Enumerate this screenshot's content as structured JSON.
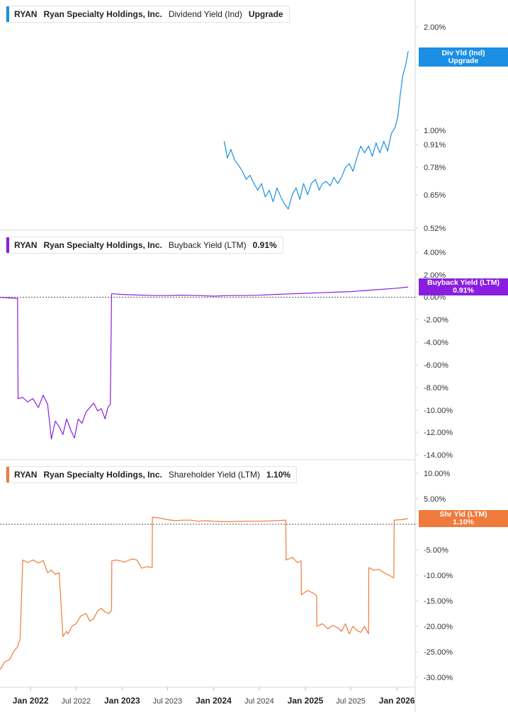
{
  "chart_data": [
    {
      "type": "line",
      "ticker": "RYAN",
      "company": "Ryan Specialty Holdings, Inc.",
      "metric": "Dividend Yield (Ind)",
      "current_value": "Upgrade",
      "flag_label": "Div Yld (Ind)",
      "flag_value": "Upgrade",
      "color": "#1a8fe3",
      "scale": "log",
      "y_ticks": [
        "2.00%",
        "1.00%",
        "0.91%",
        "0.78%",
        "0.65%",
        "0.52%"
      ],
      "y_tick_values": [
        2.0,
        1.0,
        0.91,
        0.78,
        0.65,
        0.52
      ],
      "ylim": [
        0.5,
        2.6
      ],
      "series": [
        {
          "x": [
            "2024-02-12",
            "2024-02-25",
            "2024-03-10",
            "2024-03-25",
            "2024-04-10",
            "2024-04-25",
            "2024-05-10",
            "2024-05-25",
            "2024-06-10",
            "2024-06-25",
            "2024-07-10",
            "2024-07-25",
            "2024-08-10",
            "2024-08-25",
            "2024-09-10",
            "2024-09-25",
            "2024-10-10",
            "2024-10-25",
            "2024-11-10",
            "2024-11-25",
            "2024-12-10",
            "2024-12-25",
            "2025-01-10",
            "2025-01-25",
            "2025-02-10",
            "2025-02-25",
            "2025-03-10",
            "2025-03-25",
            "2025-04-10",
            "2025-04-25",
            "2025-05-10",
            "2025-05-25",
            "2025-06-10",
            "2025-06-25",
            "2025-07-10",
            "2025-07-25",
            "2025-08-10",
            "2025-08-25",
            "2025-09-10",
            "2025-09-25",
            "2025-10-10",
            "2025-10-25",
            "2025-11-10",
            "2025-11-25",
            "2025-12-10",
            "2025-12-25",
            "2026-01-05",
            "2026-01-15",
            "2026-01-25",
            "2026-02-05",
            "2026-02-15"
          ],
          "values": [
            0.93,
            0.83,
            0.88,
            0.82,
            0.79,
            0.76,
            0.72,
            0.74,
            0.7,
            0.67,
            0.7,
            0.64,
            0.67,
            0.62,
            0.68,
            0.64,
            0.61,
            0.59,
            0.65,
            0.68,
            0.63,
            0.7,
            0.65,
            0.7,
            0.72,
            0.67,
            0.7,
            0.71,
            0.69,
            0.73,
            0.7,
            0.73,
            0.78,
            0.8,
            0.76,
            0.83,
            0.9,
            0.86,
            0.9,
            0.84,
            0.92,
            0.86,
            0.93,
            0.87,
            0.98,
            1.02,
            1.1,
            1.28,
            1.45,
            1.55,
            1.7
          ]
        }
      ]
    },
    {
      "type": "line",
      "ticker": "RYAN",
      "company": "Ryan Specialty Holdings, Inc.",
      "metric": "Buyback Yield (LTM)",
      "current_value": "0.91%",
      "flag_label": "Buyback Yield (LTM)",
      "flag_value": "0.91%",
      "color": "#8a1ee0",
      "scale": "linear",
      "zero_line": true,
      "y_ticks": [
        "4.00%",
        "2.00%",
        "0.00%",
        "-2.00%",
        "-4.00%",
        "-6.00%",
        "-8.00%",
        "-10.00%",
        "-12.00%",
        "-14.00%"
      ],
      "y_tick_values": [
        4,
        2,
        0,
        -2,
        -4,
        -6,
        -8,
        -10,
        -12,
        -14
      ],
      "ylim": [
        -14.5,
        5
      ],
      "series": [
        {
          "x": [
            "2021-09-01",
            "2021-10-01",
            "2021-11-01",
            "2021-11-10",
            "2021-11-12",
            "2021-12-01",
            "2021-12-20",
            "2022-01-10",
            "2022-02-01",
            "2022-02-20",
            "2022-03-10",
            "2022-03-25",
            "2022-04-10",
            "2022-04-25",
            "2022-05-10",
            "2022-05-25",
            "2022-06-10",
            "2022-06-25",
            "2022-07-10",
            "2022-07-25",
            "2022-08-10",
            "2022-08-25",
            "2022-09-10",
            "2022-09-25",
            "2022-10-10",
            "2022-10-25",
            "2022-11-05",
            "2022-11-15",
            "2022-11-20",
            "2022-12-01",
            "2023-01-01",
            "2023-03-01",
            "2023-05-01",
            "2023-07-01",
            "2023-09-01",
            "2023-11-01",
            "2024-01-01",
            "2024-03-01",
            "2024-05-01",
            "2024-07-01",
            "2024-09-01",
            "2024-11-01",
            "2025-01-01",
            "2025-03-01",
            "2025-05-01",
            "2025-07-01",
            "2025-09-01",
            "2025-11-01",
            "2026-01-01",
            "2026-02-15"
          ],
          "values": [
            0.0,
            -0.05,
            -0.1,
            -0.1,
            -9.0,
            -8.9,
            -9.3,
            -9.0,
            -9.8,
            -8.7,
            -9.5,
            -12.6,
            -11.0,
            -11.5,
            -12.2,
            -10.8,
            -11.8,
            -12.5,
            -10.8,
            -11.2,
            -10.2,
            -9.8,
            -9.4,
            -10.1,
            -9.9,
            -10.8,
            -9.8,
            -9.5,
            0.3,
            0.3,
            0.25,
            0.2,
            0.15,
            0.15,
            0.18,
            0.15,
            0.1,
            0.15,
            0.15,
            0.18,
            0.25,
            0.3,
            0.35,
            0.4,
            0.45,
            0.5,
            0.6,
            0.7,
            0.8,
            0.91
          ]
        }
      ]
    },
    {
      "type": "line",
      "ticker": "RYAN",
      "company": "Ryan Specialty Holdings, Inc.",
      "metric": "Shareholder Yield (LTM)",
      "current_value": "1.10%",
      "flag_label": "Shr Yld (LTM)",
      "flag_value": "1.10%",
      "color": "#f07a3c",
      "scale": "linear",
      "zero_line": true,
      "y_ticks": [
        "10.00%",
        "5.00%",
        "0.00%",
        "-5.00%",
        "-10.00%",
        "-15.00%",
        "-20.00%",
        "-25.00%",
        "-30.00%"
      ],
      "y_tick_values": [
        10,
        5,
        0,
        -5,
        -10,
        -15,
        -20,
        -25,
        -30
      ],
      "ylim": [
        -31.5,
        11
      ],
      "series": [
        {
          "x": [
            "2021-09-01",
            "2021-09-20",
            "2021-10-10",
            "2021-10-25",
            "2021-11-10",
            "2021-11-20",
            "2021-12-01",
            "2021-12-20",
            "2022-01-10",
            "2022-02-01",
            "2022-02-20",
            "2022-03-10",
            "2022-03-25",
            "2022-04-10",
            "2022-04-25",
            "2022-05-10",
            "2022-05-25",
            "2022-05-30",
            "2022-06-15",
            "2022-07-01",
            "2022-07-20",
            "2022-08-10",
            "2022-08-25",
            "2022-09-10",
            "2022-09-25",
            "2022-10-10",
            "2022-10-25",
            "2022-11-10",
            "2022-11-20",
            "2022-11-21",
            "2022-12-10",
            "2023-01-10",
            "2023-02-10",
            "2023-03-01",
            "2023-03-20",
            "2023-04-10",
            "2023-05-01",
            "2023-05-02",
            "2023-06-01",
            "2023-07-01",
            "2023-08-01",
            "2023-09-01",
            "2023-10-01",
            "2023-11-01",
            "2023-12-01",
            "2024-01-01",
            "2024-03-01",
            "2024-05-01",
            "2024-07-01",
            "2024-09-01",
            "2024-10-15",
            "2024-10-16",
            "2024-11-10",
            "2024-12-01",
            "2024-12-15",
            "2024-12-16",
            "2025-01-10",
            "2025-02-01",
            "2025-02-15",
            "2025-02-16",
            "2025-03-10",
            "2025-04-01",
            "2025-04-20",
            "2025-05-10",
            "2025-05-25",
            "2025-06-10",
            "2025-06-25",
            "2025-07-10",
            "2025-07-25",
            "2025-08-10",
            "2025-08-25",
            "2025-09-10",
            "2025-09-11",
            "2025-10-01",
            "2025-10-20",
            "2025-11-10",
            "2025-12-01",
            "2025-12-20",
            "2025-12-21",
            "2026-01-20",
            "2026-02-15"
          ],
          "values": [
            -28.5,
            -27.0,
            -26.5,
            -25.0,
            -24.0,
            -22.5,
            -7.0,
            -7.5,
            -7.0,
            -7.6,
            -7.1,
            -9.5,
            -9.0,
            -9.8,
            -9.5,
            -22.0,
            -21.0,
            -21.5,
            -20.0,
            -19.5,
            -18.0,
            -17.5,
            -19.0,
            -18.5,
            -17.0,
            -16.5,
            -17.2,
            -17.5,
            -16.8,
            -7.2,
            -7.0,
            -7.4,
            -6.8,
            -7.0,
            -8.6,
            -8.3,
            -8.5,
            1.4,
            1.2,
            0.9,
            0.7,
            0.8,
            0.8,
            0.6,
            0.7,
            0.6,
            0.5,
            0.6,
            0.6,
            0.7,
            0.8,
            -7.0,
            -6.5,
            -7.5,
            -7.2,
            -13.8,
            -13.0,
            -13.5,
            -14.0,
            -20.0,
            -19.5,
            -20.5,
            -19.8,
            -20.3,
            -21.0,
            -19.5,
            -21.5,
            -20.0,
            -20.8,
            -21.2,
            -20.0,
            -21.5,
            -8.5,
            -9.0,
            -8.8,
            -9.5,
            -10.0,
            -10.5,
            0.8,
            0.9,
            1.1
          ]
        }
      ]
    }
  ],
  "x_axis": {
    "ticks": [
      {
        "label": "Jan 2022",
        "date": "2022-01-01",
        "major": true
      },
      {
        "label": "Jul 2022",
        "date": "2022-07-01",
        "major": false
      },
      {
        "label": "Jan 2023",
        "date": "2023-01-01",
        "major": true
      },
      {
        "label": "Jul 2023",
        "date": "2023-07-01",
        "major": false
      },
      {
        "label": "Jan 2024",
        "date": "2024-01-01",
        "major": true
      },
      {
        "label": "Jul 2024",
        "date": "2024-07-01",
        "major": false
      },
      {
        "label": "Jan 2025",
        "date": "2025-01-01",
        "major": true
      },
      {
        "label": "Jul 2025",
        "date": "2025-07-01",
        "major": false
      },
      {
        "label": "Jan 2026",
        "date": "2026-01-01",
        "major": true
      }
    ],
    "range": [
      "2021-09-01",
      "2026-03-15"
    ]
  }
}
